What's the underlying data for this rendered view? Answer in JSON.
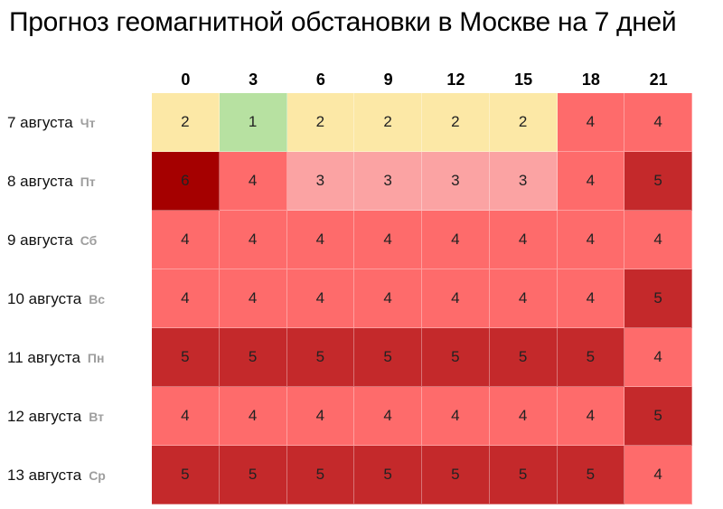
{
  "chart_data": {
    "type": "heatmap",
    "title": "Прогноз геомагнитной обстановки в Москве на 7 дней",
    "x": [
      "0",
      "3",
      "6",
      "9",
      "12",
      "15",
      "18",
      "21"
    ],
    "rows": [
      {
        "date": "7 августа",
        "dow": "Чт"
      },
      {
        "date": "8 августа",
        "dow": "Пт"
      },
      {
        "date": "9 августа",
        "dow": "Сб"
      },
      {
        "date": "10 августа",
        "dow": "Вс"
      },
      {
        "date": "11 августа",
        "dow": "Пн"
      },
      {
        "date": "12 августа",
        "dow": "Вт"
      },
      {
        "date": "13 августа",
        "dow": "Ср"
      }
    ],
    "values": [
      [
        2,
        1,
        2,
        2,
        2,
        2,
        4,
        4
      ],
      [
        6,
        4,
        3,
        3,
        3,
        3,
        4,
        5
      ],
      [
        4,
        4,
        4,
        4,
        4,
        4,
        4,
        4
      ],
      [
        4,
        4,
        4,
        4,
        4,
        4,
        4,
        5
      ],
      [
        5,
        5,
        5,
        5,
        5,
        5,
        5,
        4
      ],
      [
        4,
        4,
        4,
        4,
        4,
        4,
        4,
        5
      ],
      [
        5,
        5,
        5,
        5,
        5,
        5,
        5,
        4
      ]
    ],
    "color_scale": {
      "1": "#b7e1a1",
      "2": "#fce8a6",
      "3": "#fba3a3",
      "4": "#fe6b6b",
      "5": "#c4292b",
      "6": "#a50000"
    }
  }
}
